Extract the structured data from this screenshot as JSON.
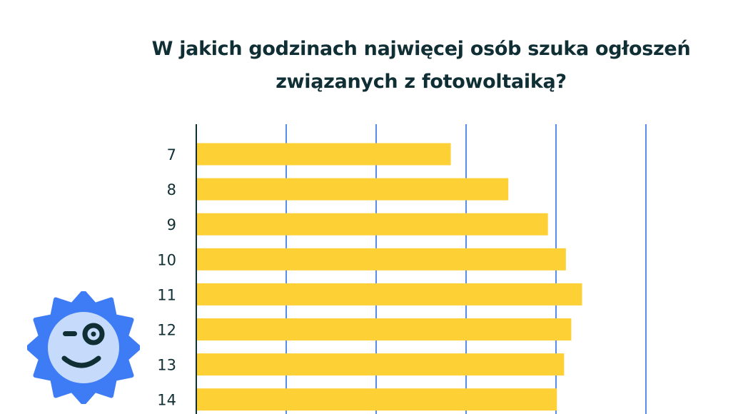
{
  "chart_data": {
    "type": "bar",
    "orientation": "horizontal",
    "title": "W jakich godzinach najwięcej osób szuka ogłoszeń związanych z fotowoltaiką?",
    "title_lines": [
      "W jakich godzinach najwięcej osób szuka ogłoszeń",
      "związanych z fotowoltaiką?"
    ],
    "categories": [
      "7",
      "8",
      "9",
      "10",
      "11",
      "12",
      "13",
      "14"
    ],
    "values": [
      2.83,
      3.47,
      3.91,
      4.11,
      4.29,
      4.17,
      4.09,
      4.01
    ],
    "xlim": [
      0,
      5
    ],
    "grid": true,
    "xlabel": "",
    "ylabel": "",
    "colors": {
      "bar": "#fdd036",
      "grid": "#2f6fe4",
      "axis": "#0f2f35",
      "text": "#0f2f35"
    }
  },
  "mascot": {
    "icon": "winking-sun-icon",
    "colors": {
      "outer": "#3e7cf6",
      "inner": "#c6dafb",
      "face": "#0f2f35"
    }
  }
}
